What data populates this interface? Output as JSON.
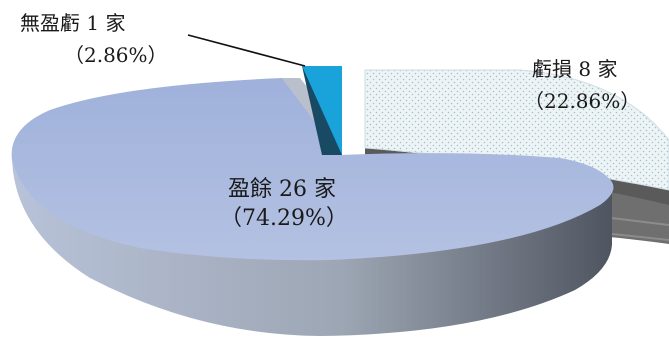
{
  "chart_data": {
    "type": "pie",
    "style": "3d-exploded",
    "slices": [
      {
        "label": "無盈虧 1 家",
        "value": 1,
        "percent_label": "（2.86%）",
        "color": "#1a9fd6"
      },
      {
        "label": "虧損 8 家",
        "value": 8,
        "percent_label": "（22.86%）",
        "color": "#eef4f6"
      },
      {
        "label": "盈餘 26 家",
        "value": 26,
        "percent_label": "（74.29%）",
        "color": "#a7b7dc"
      }
    ]
  }
}
